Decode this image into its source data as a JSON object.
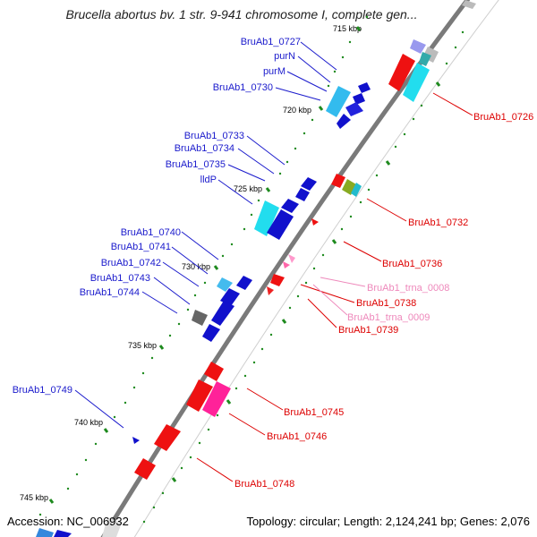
{
  "title": "Brucella abortus bv. 1 str. 9-941 chromosome I, complete gen...",
  "footer": {
    "accession": "Accession: NC_006932",
    "topology": "Topology: circular; Length: 2,124,241 bp; Genes: 2,076"
  },
  "colors": {
    "backbone": "#777777",
    "forward_label": "#1a1acc",
    "reverse_label": "#dd0000",
    "trna_label": "#ee88bb",
    "tick_dot": "#1e8a1e"
  },
  "ticks": [
    "715 kbp",
    "720 kbp",
    "725 kbp",
    "730 kbp",
    "735 kbp",
    "740 kbp",
    "745 kbp"
  ],
  "forward_labels": [
    "BruAb1_0727",
    "purN",
    "purM",
    "BruAb1_0730",
    "BruAb1_0733",
    "BruAb1_0734",
    "BruAb1_0735",
    "lldP",
    "BruAb1_0740",
    "BruAb1_0741",
    "BruAb1_0742",
    "BruAb1_0743",
    "BruAb1_0744",
    "BruAb1_0749"
  ],
  "reverse_labels": [
    "BruAb1_0726",
    "BruAb1_0732",
    "BruAb1_0736",
    "BruAb1_0738",
    "BruAb1_0739",
    "BruAb1_0745",
    "BruAb1_0746",
    "BruAb1_0748"
  ],
  "trna_labels": [
    "BruAb1_trna_0008",
    "BruAb1_trna_0009"
  ]
}
